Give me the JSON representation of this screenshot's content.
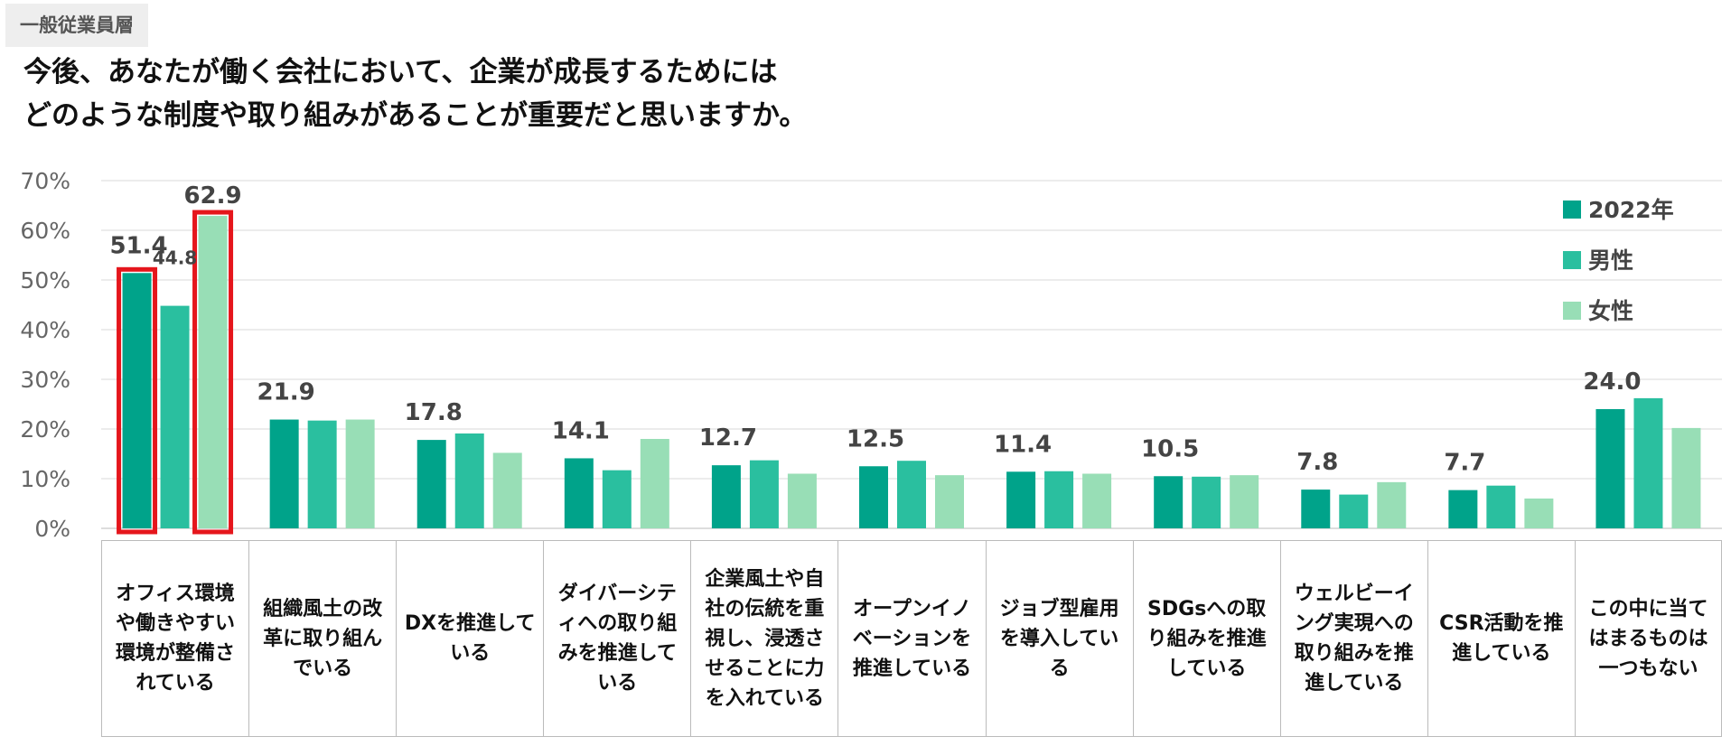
{
  "header": {
    "tag": "一般従業員層",
    "question_line1": "今後、あなたが働く会社において、企業が成長するためには",
    "question_line2": "どのような制度や取り組みがあることが重要だと思いますか。"
  },
  "chart_data": {
    "type": "bar",
    "ylim": [
      0,
      70
    ],
    "yticks": [
      "0%",
      "10%",
      "20%",
      "30%",
      "40%",
      "50%",
      "60%",
      "70%"
    ],
    "categories": [
      "オフィス環境や働きやすい環境が整備されている",
      "組織風土の改革に取り組んでいる",
      "DXを推進している",
      "ダイバーシティへの取り組みを推進している",
      "企業風土や自社の伝統を重視し、浸透させることに力を入れている",
      "オープンイノベーションを推進している",
      "ジョブ型雇用を導入している",
      "SDGsへの取り組みを推進している",
      "ウェルビーイング実現への取り組みを推進している",
      "CSR活動を推進している",
      "この中に当てはまるものは一つもない"
    ],
    "series": [
      {
        "name": "2022年",
        "color": "#00a38a",
        "values": [
          51.4,
          21.9,
          17.8,
          14.1,
          12.7,
          12.5,
          11.4,
          10.5,
          7.8,
          7.7,
          24.0
        ]
      },
      {
        "name": "男性",
        "color": "#2abf9f",
        "values": [
          44.8,
          21.7,
          19.1,
          11.7,
          13.7,
          13.6,
          11.5,
          10.4,
          6.8,
          8.6,
          26.2
        ]
      },
      {
        "name": "女性",
        "color": "#98deb6",
        "values": [
          62.9,
          21.9,
          15.2,
          18.0,
          11.0,
          10.7,
          11.0,
          10.7,
          9.3,
          6.0,
          20.2
        ]
      }
    ],
    "data_labels": [
      "51.4",
      "21.9",
      "17.8",
      "14.1",
      "12.7",
      "12.5",
      "11.4",
      "10.5",
      "7.8",
      "7.7",
      "24.0"
    ],
    "extra_labels": [
      {
        "category": 0,
        "series": 1,
        "text": "44.8"
      },
      {
        "category": 0,
        "series": 2,
        "text": "62.9"
      }
    ],
    "highlight_color": "#e5161c",
    "highlights": [
      {
        "category": 0,
        "series": 0
      },
      {
        "category": 0,
        "series": 2
      }
    ],
    "legend": [
      "2022年",
      "男性",
      "女性"
    ]
  }
}
